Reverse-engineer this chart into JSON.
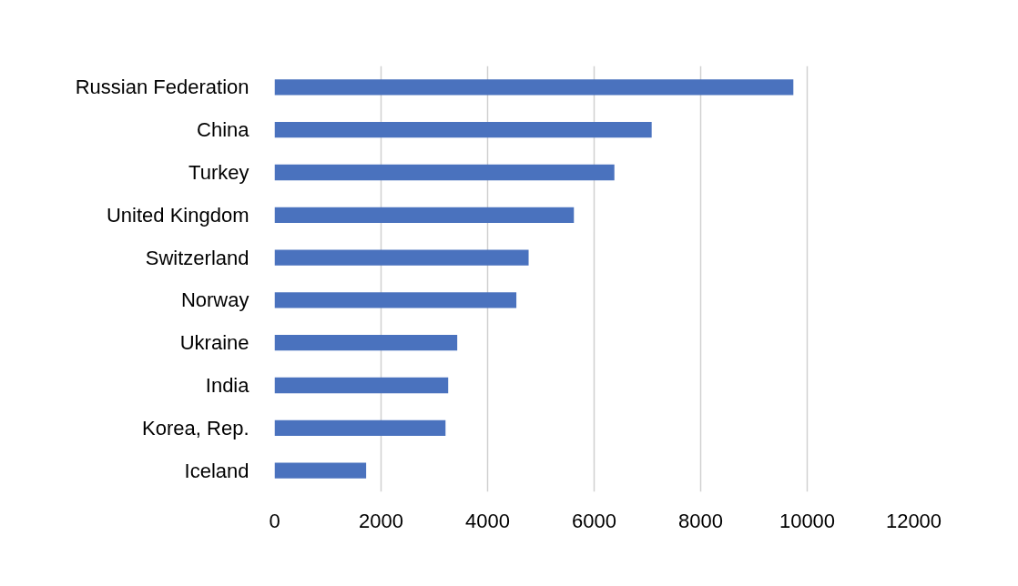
{
  "chart_data": {
    "type": "bar",
    "orientation": "horizontal",
    "categories": [
      "Russian Federation",
      "China",
      "Turkey",
      "United Kingdom",
      "Switzerland",
      "Norway",
      "Ukraine",
      "India",
      "Korea, Rep.",
      "Iceland"
    ],
    "values": [
      9740,
      7080,
      6380,
      5620,
      4770,
      4540,
      3430,
      3260,
      3210,
      1720
    ],
    "color": "#4a72be",
    "xlim": [
      0,
      12000
    ],
    "xticks": [
      0,
      2000,
      4000,
      6000,
      8000,
      10000,
      12000
    ],
    "grid": "x"
  }
}
